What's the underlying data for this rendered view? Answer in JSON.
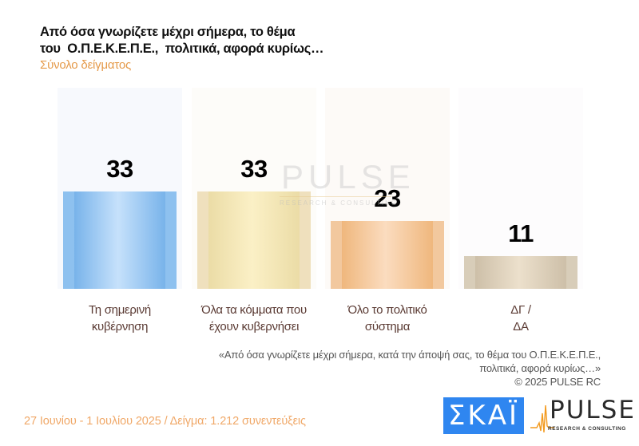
{
  "header": {
    "title_lines": [
      "Από όσα γνωρίζετε μέχρι σήμερα, το θέμα",
      "του  Ο.Π.Ε.Κ.Ε.Π.Ε.,  πολιτικά, αφορά κυρίως…"
    ],
    "subtitle": "Σύνολο δείγματος"
  },
  "chart_data": {
    "type": "bar",
    "title": "Από όσα γνωρίζετε μέχρι σήμερα, το θέμα του Ο.Π.Ε.Κ.Ε.Π.Ε., πολιτικά, αφορά κυρίως…",
    "subtitle": "Σύνολο δείγματος",
    "categories": [
      [
        "Τη σημερινή",
        "κυβέρνηση"
      ],
      [
        "Όλα τα κόμματα που",
        "έχουν κυβερνήσει"
      ],
      [
        "Όλο το πολιτικό",
        "σύστημα"
      ],
      [
        "ΔΓ /",
        "ΔΑ"
      ]
    ],
    "values": [
      33,
      33,
      23,
      11
    ],
    "value_labels": [
      "33",
      "33",
      "23",
      "11"
    ],
    "colors": [
      {
        "edge": "#8ec1ef",
        "dark": "#78b3ea",
        "light": "#c6e1fb",
        "panel": "#f7f9fd"
      },
      {
        "edge": "#efe0bd",
        "dark": "#ebdca6",
        "light": "#fbf0c6",
        "panel": "#fdfcf9"
      },
      {
        "edge": "#f2c89e",
        "dark": "#efb77d",
        "light": "#fbdcbf",
        "panel": "#fdfaf7"
      },
      {
        "edge": "#d8cdb9",
        "dark": "#cdbfa8",
        "light": "#ece0cc",
        "panel": "#fdfcfd"
      }
    ],
    "xlabel": "",
    "ylabel": "",
    "ylim": [
      0,
      68
    ],
    "grid": false,
    "legend": "none"
  },
  "watermark": {
    "text": "PULSE",
    "subtext": "RESEARCH & CONSULTING"
  },
  "footnote": {
    "lines": [
      "«Από όσα γνωρίζετε μέχρι σήμερα, κατά την άποψή σας, το θέμα του Ο.Π.Ε.Κ.Ε.Π.Ε.,",
      "πολιτικά, αφορά κυρίως…»",
      "©  2025  PULSE RC"
    ]
  },
  "footer": {
    "fieldwork": "27 Ιουνίου - 1 Ιουλίου 2025  /  Δείγμα:  1.212 συνεντεύξεις",
    "skai_logo_text": "ΣΚΑΪ",
    "pulse_logo_text": "PULSE",
    "pulse_logo_sub": "RESEARCH & CONSULTING"
  }
}
